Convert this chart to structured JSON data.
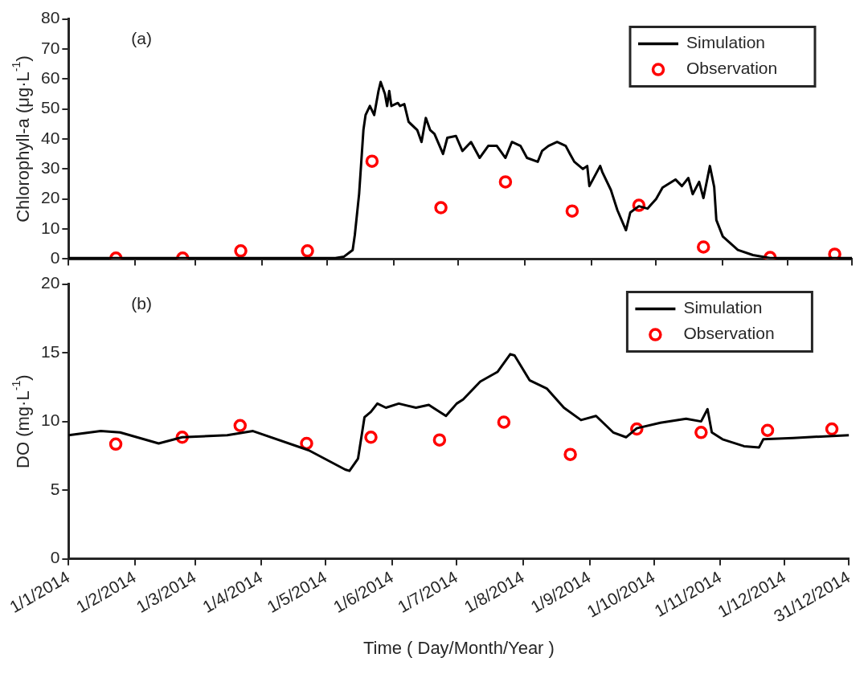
{
  "chart_data": [
    {
      "type": "line",
      "ylabel": "Chlorophyll-a (μg·L$^{-1}$)",
      "annotations": [
        "(a)"
      ],
      "legend": "top right",
      "tick_labels": "y",
      "grid": false,
      "xlim": [
        "2014-01-01",
        "2014-12-31"
      ],
      "xticks": [
        {
          "value": "2014-01-01",
          "label": null
        },
        {
          "value": "2014-02-01",
          "label": null
        },
        {
          "value": "2014-03-01",
          "label": null
        },
        {
          "value": "2014-04-01",
          "label": null
        },
        {
          "value": "2014-05-01",
          "label": null
        },
        {
          "value": "2014-06-01",
          "label": null
        },
        {
          "value": "2014-07-01",
          "label": null
        },
        {
          "value": "2014-08-01",
          "label": null
        },
        {
          "value": "2014-09-01",
          "label": null
        },
        {
          "value": "2014-10-01",
          "label": null
        },
        {
          "value": "2014-11-01",
          "label": null
        },
        {
          "value": "2014-12-01",
          "label": null
        },
        {
          "value": "2014-12-31",
          "label": null
        }
      ],
      "ylim": [
        0,
        80
      ],
      "yticks": [
        0,
        10,
        20,
        30,
        40,
        50,
        60,
        70,
        80
      ],
      "series": [
        {
          "name": "Simulation",
          "type": "line",
          "marker": "none",
          "color": "#000000",
          "x": [
            "2014-01-01",
            "2014-05-05",
            "2014-05-09",
            "2014-05-13",
            "2014-05-14",
            "2014-05-16",
            "2014-05-18",
            "2014-05-19",
            "2014-05-21",
            "2014-05-23",
            "2014-05-25",
            "2014-05-26",
            "2014-05-28",
            "2014-05-29",
            "2014-05-30",
            "2014-05-31",
            "2014-06-03",
            "2014-06-04",
            "2014-06-06",
            "2014-06-08",
            "2014-06-12",
            "2014-06-14",
            "2014-06-16",
            "2014-06-18",
            "2014-06-20",
            "2014-06-24",
            "2014-06-26",
            "2014-06-30",
            "2014-07-03",
            "2014-07-07",
            "2014-07-11",
            "2014-07-15",
            "2014-07-19",
            "2014-07-23",
            "2014-07-26",
            "2014-07-30",
            "2014-08-02",
            "2014-08-07",
            "2014-08-09",
            "2014-08-12",
            "2014-08-16",
            "2014-08-20",
            "2014-08-22",
            "2014-08-24",
            "2014-08-28",
            "2014-08-30",
            "2014-08-31",
            "2014-09-05",
            "2014-09-06",
            "2014-09-10",
            "2014-09-13",
            "2014-09-17",
            "2014-09-19",
            "2014-09-23",
            "2014-09-27",
            "2014-10-01",
            "2014-10-04",
            "2014-10-10",
            "2014-10-13",
            "2014-10-16",
            "2014-10-18",
            "2014-10-21",
            "2014-10-23",
            "2014-10-26",
            "2014-10-28",
            "2014-10-29",
            "2014-11-01",
            "2014-11-08",
            "2014-11-15",
            "2014-11-23",
            "2014-12-31"
          ],
          "values": [
            0.3,
            0.3,
            0.8,
            3,
            8,
            21.7,
            43,
            48,
            51,
            48,
            56,
            59,
            55,
            51,
            56,
            51,
            52,
            51,
            51.6,
            45.7,
            43,
            39,
            47,
            43,
            41.7,
            35,
            40.4,
            41,
            36,
            39,
            33.7,
            37.7,
            37.7,
            33.7,
            39,
            37.7,
            33.7,
            32.4,
            36,
            37.7,
            39,
            37.7,
            35,
            32.4,
            30,
            31,
            24.3,
            31,
            29,
            23,
            16.3,
            9.6,
            15.5,
            17.6,
            16.8,
            20,
            23.8,
            26.5,
            24.3,
            27,
            21.6,
            25.7,
            20.3,
            31,
            24,
            13,
            7.5,
            3,
            1.3,
            0.3,
            0.3
          ]
        },
        {
          "name": "Observation",
          "type": "scatter",
          "marker": "circle",
          "color": "#ff0000",
          "x": [
            "2014-01-23",
            "2014-02-23",
            "2014-03-22",
            "2014-04-22",
            "2014-05-22",
            "2014-06-23",
            "2014-07-23",
            "2014-08-23",
            "2014-09-23",
            "2014-10-23",
            "2014-11-23",
            "2014-12-23"
          ],
          "values": [
            0.3,
            0.3,
            2.7,
            2.7,
            32.6,
            17.1,
            25.7,
            16,
            17.9,
            4,
            0.5,
            1.6
          ]
        }
      ]
    },
    {
      "type": "line",
      "ylabel": "DO (mg·L$^{-1}$)",
      "xlabel": "Time ( Day/Month/Year )",
      "annotations": [
        "(b)"
      ],
      "legend": "top right",
      "grid": false,
      "xlim": [
        "2014-01-01",
        "2014-12-31"
      ],
      "xticks": [
        {
          "value": "2014-01-01",
          "label": "1/1/2014"
        },
        {
          "value": "2014-02-01",
          "label": "1/2/2014"
        },
        {
          "value": "2014-03-01",
          "label": "1/3/2014"
        },
        {
          "value": "2014-04-01",
          "label": "1/4/2014"
        },
        {
          "value": "2014-05-01",
          "label": "1/5/2014"
        },
        {
          "value": "2014-06-01",
          "label": "1/6/2014"
        },
        {
          "value": "2014-07-01",
          "label": "1/7/2014"
        },
        {
          "value": "2014-08-01",
          "label": "1/8/2014"
        },
        {
          "value": "2014-09-01",
          "label": "1/9/2014"
        },
        {
          "value": "2014-10-01",
          "label": "1/10/2014"
        },
        {
          "value": "2014-11-01",
          "label": "1/11/2014"
        },
        {
          "value": "2014-12-01",
          "label": "1/12/2014"
        },
        {
          "value": "2014-12-31",
          "label": "31/12/2014"
        }
      ],
      "ylim": [
        0,
        20
      ],
      "yticks": [
        0,
        5,
        10,
        15,
        20
      ],
      "series": [
        {
          "name": "Simulation",
          "type": "line",
          "marker": "none",
          "color": "#000000",
          "x": [
            "2014-01-01",
            "2014-01-16",
            "2014-01-25",
            "2014-02-12",
            "2014-02-23",
            "2014-03-16",
            "2014-03-28",
            "2014-04-23",
            "2014-05-10",
            "2014-05-12",
            "2014-05-16",
            "2014-05-19",
            "2014-05-22",
            "2014-05-25",
            "2014-05-29",
            "2014-06-04",
            "2014-06-12",
            "2014-06-18",
            "2014-06-26",
            "2014-07-01",
            "2014-07-04",
            "2014-07-12",
            "2014-07-20",
            "2014-07-26",
            "2014-07-28",
            "2014-08-04",
            "2014-08-12",
            "2014-08-20",
            "2014-08-28",
            "2014-09-04",
            "2014-09-12",
            "2014-09-18",
            "2014-09-23",
            "2014-10-04",
            "2014-10-16",
            "2014-10-23",
            "2014-10-26",
            "2014-10-28",
            "2014-11-02",
            "2014-11-12",
            "2014-11-19",
            "2014-11-21",
            "2014-12-05",
            "2014-12-31"
          ],
          "values": [
            9.0,
            9.3,
            9.2,
            8.4,
            8.85,
            9.0,
            9.3,
            7.9,
            6.5,
            6.4,
            7.3,
            10.3,
            10.7,
            11.3,
            11,
            11.3,
            11,
            11.2,
            10.4,
            11.3,
            11.6,
            12.9,
            13.6,
            14.9,
            14.8,
            13,
            12.4,
            11,
            10.1,
            10.4,
            9.2,
            8.85,
            9.5,
            9.9,
            10.2,
            10,
            10.9,
            9.2,
            8.7,
            8.2,
            8.1,
            8.7,
            8.8,
            9.0
          ]
        },
        {
          "name": "Observation",
          "type": "scatter",
          "marker": "circle",
          "color": "#ff0000",
          "x": [
            "2014-01-23",
            "2014-02-23",
            "2014-03-22",
            "2014-04-22",
            "2014-05-22",
            "2014-06-23",
            "2014-07-23",
            "2014-08-23",
            "2014-09-23",
            "2014-10-23",
            "2014-11-23",
            "2014-12-23"
          ],
          "values": [
            8.35,
            8.85,
            9.7,
            8.4,
            8.85,
            8.65,
            9.95,
            7.6,
            9.45,
            9.2,
            9.35,
            9.45
          ]
        }
      ]
    }
  ]
}
